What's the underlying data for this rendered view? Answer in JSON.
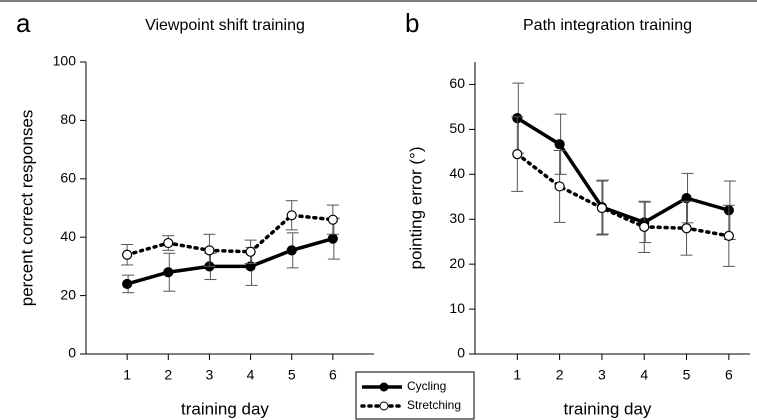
{
  "chart_data": [
    {
      "type": "line",
      "panel": "a",
      "title": "Viewpoint shift training",
      "xlabel": "training day",
      "ylabel": "percent correct responses",
      "x": [
        1,
        2,
        3,
        4,
        5,
        6
      ],
      "xlim": [
        0,
        7
      ],
      "xticks": [
        1,
        2,
        3,
        4,
        5,
        6
      ],
      "ylim": [
        0,
        100
      ],
      "yticks": [
        0,
        20,
        40,
        60,
        80,
        100
      ],
      "series": [
        {
          "name": "Cycling",
          "color": "#000000",
          "dash": "solid",
          "marker": "filled",
          "values": [
            24,
            28,
            30,
            30,
            35.5,
            39.5
          ],
          "errors": [
            3,
            6.5,
            4.5,
            6.5,
            6,
            7
          ]
        },
        {
          "name": "Stretching",
          "color": "#000000",
          "dash": "dotted",
          "marker": "open",
          "values": [
            34,
            38,
            35.5,
            35,
            47.5,
            46
          ],
          "errors": [
            3.5,
            2.5,
            5.5,
            4,
            5,
            5
          ]
        }
      ]
    },
    {
      "type": "line",
      "panel": "b",
      "title": "Path integration training",
      "xlabel": "training day",
      "ylabel": "pointing error (°)",
      "x": [
        1,
        2,
        3,
        4,
        5,
        6
      ],
      "xlim": [
        0,
        6.5
      ],
      "xticks": [
        1,
        2,
        3,
        4,
        5,
        6
      ],
      "ylim": [
        0,
        65
      ],
      "yticks": [
        0,
        10,
        20,
        30,
        40,
        50,
        60
      ],
      "series": [
        {
          "color": "#000000",
          "dash": "solid",
          "marker": "filled",
          "values": [
            52.5,
            46.7,
            32.7,
            29.3,
            34.7,
            32
          ],
          "errors": [
            7.8,
            6.7,
            6,
            4.5,
            5.5,
            6.5
          ]
        },
        {
          "color": "#000000",
          "dash": "dotted",
          "marker": "open",
          "values": [
            44.5,
            37.3,
            32.5,
            28.3,
            28,
            26.3
          ],
          "errors": [
            8.3,
            8,
            6,
            5.7,
            6,
            6.8
          ]
        }
      ]
    }
  ]
}
